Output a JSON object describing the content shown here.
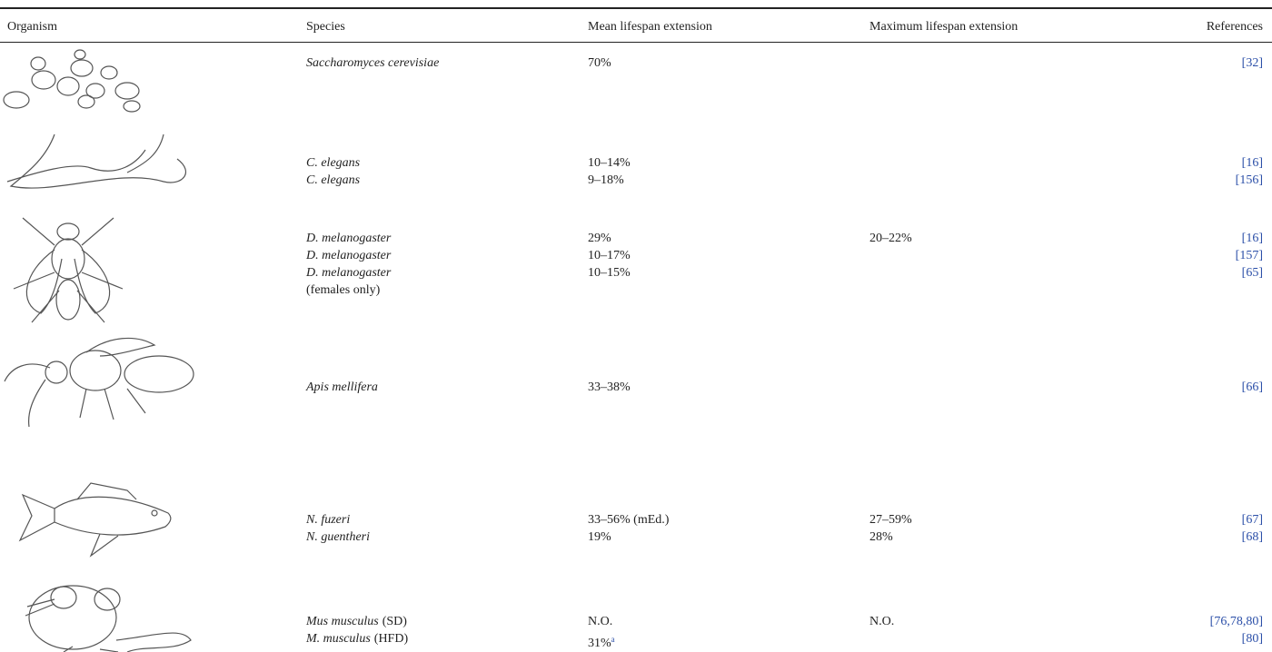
{
  "header": {
    "organism": "Organism",
    "species": "Species",
    "mean": "Mean lifespan extension",
    "maximum": "Maximum lifespan extension",
    "references": "References"
  },
  "groups": [
    {
      "entries": [
        {
          "species": "Saccharomyces cerevisiae",
          "mean": "70%",
          "reference": "[32]"
        }
      ]
    },
    {
      "entries": [
        {
          "species": "C. elegans",
          "mean": "10–14%",
          "reference": "[16]"
        },
        {
          "species": "C. elegans",
          "mean": "9–18%",
          "reference": "[156]"
        }
      ]
    },
    {
      "entries": [
        {
          "species": "D. melanogaster",
          "mean": "29%",
          "maximum": "20–22%",
          "reference": "[16]"
        },
        {
          "species": "D. melanogaster",
          "mean": "10–17%",
          "reference": "[157]"
        },
        {
          "species": "D. melanogaster",
          "mean": "10–15%",
          "reference": "[65]"
        },
        {
          "species_note": "(females only)"
        }
      ]
    },
    {
      "entries": [
        {
          "species": "Apis mellifera",
          "mean": "33–38%",
          "reference": "[66]"
        }
      ]
    },
    {
      "entries": [
        {
          "species": "N. fuzeri",
          "mean": "33–56% (mEd.)",
          "maximum": "27–59%",
          "reference": "[67]"
        },
        {
          "species": "N. guentheri",
          "mean": "19%",
          "maximum": "28%",
          "reference": "[68]"
        }
      ]
    },
    {
      "entries": [
        {
          "species": "Mus musculus",
          "species_note": "(SD)",
          "mean": "N.O.",
          "maximum": "N.O.",
          "reference": "[76,78,80]"
        },
        {
          "species": "M. musculus",
          "species_note": "(HFD)",
          "mean": "31%",
          "mean_note": "a",
          "reference": "[80]"
        }
      ]
    }
  ]
}
